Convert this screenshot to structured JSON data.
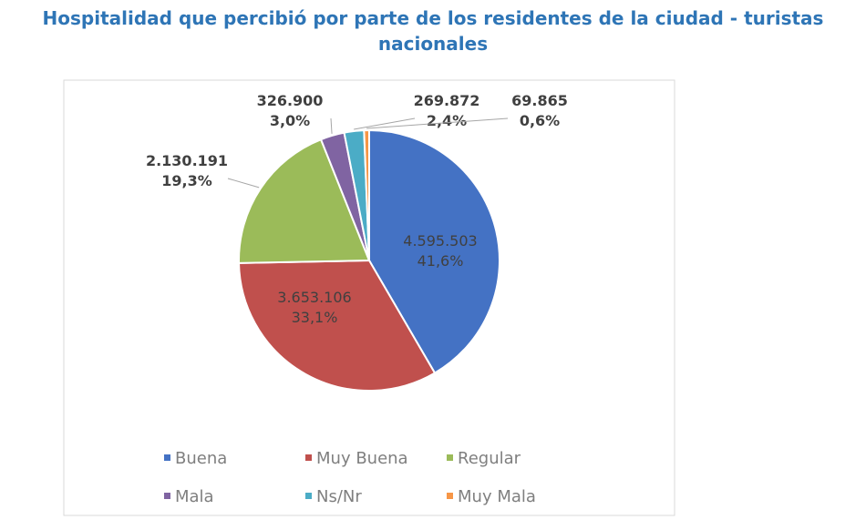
{
  "chart_data": {
    "type": "pie",
    "title": "Hospitalidad que percibió por parte de los residentes de la ciudad - turistas nacionales",
    "categories": [
      "Buena",
      "Muy Buena",
      "Regular",
      "Mala",
      "Ns/Nr",
      "Muy Mala"
    ],
    "values": [
      4595503,
      3653106,
      2130191,
      326900,
      269872,
      69865
    ],
    "value_labels": [
      "4.595.503",
      "3.653.106",
      "2.130.191",
      "326.900",
      "269.872",
      "69.865"
    ],
    "percentages": [
      41.6,
      33.1,
      19.3,
      3.0,
      2.4,
      0.6
    ],
    "percentage_labels": [
      "41,6%",
      "33,1%",
      "19,3%",
      "3,0%",
      "2,4%",
      "0,6%"
    ],
    "colors": [
      "#4472c4",
      "#c0504d",
      "#9bbb59",
      "#8064a2",
      "#4bacc6",
      "#f79646"
    ],
    "legend": "bottom"
  }
}
